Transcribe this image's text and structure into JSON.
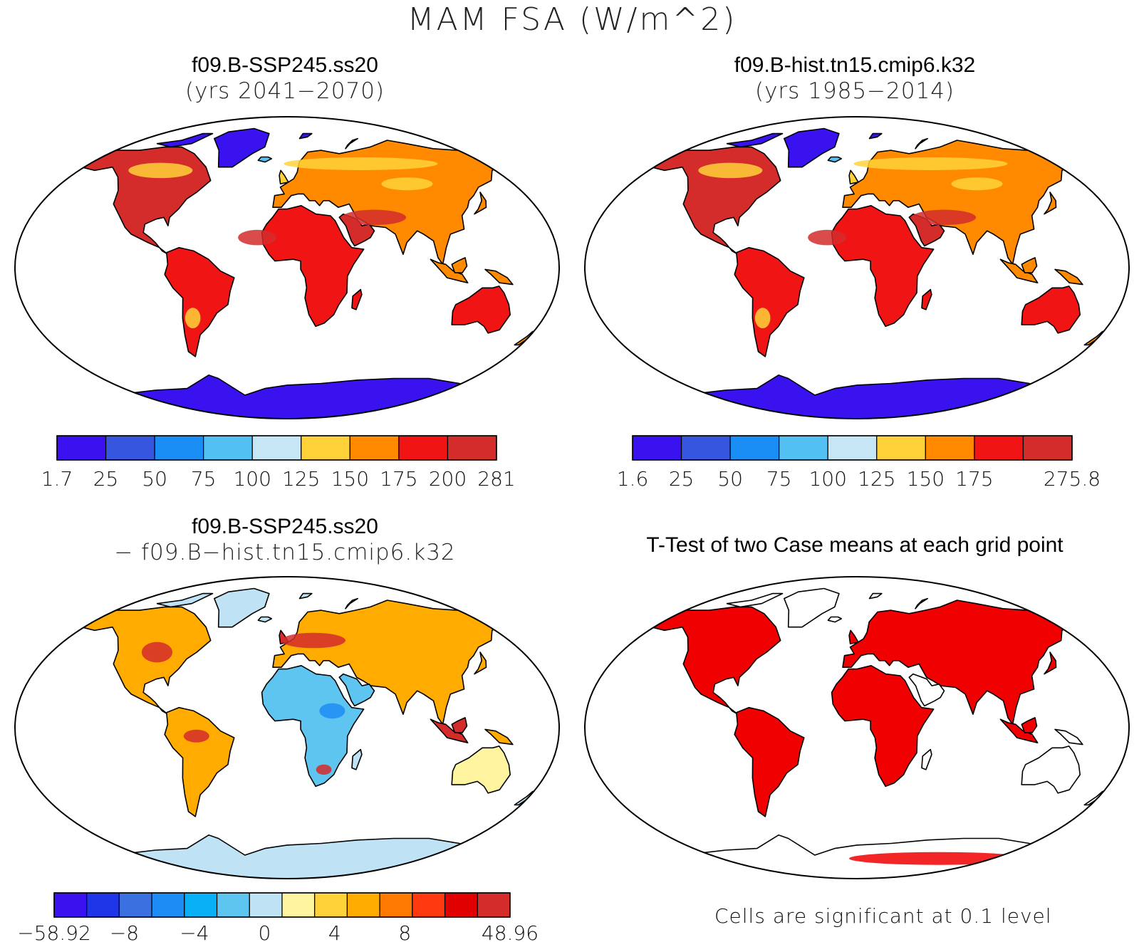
{
  "figure": {
    "title": "MAM FSA (W/m^2)"
  },
  "chart_data": [
    {
      "type": "heatmap",
      "panel": "top-left",
      "title": "f09.B-SSP245.ss20",
      "subtitle": "(yrs 2041−2070)",
      "colorbar": {
        "tick_labels": [
          "1.7",
          "25",
          "50",
          "75",
          "100",
          "125",
          "150",
          "175",
          "200",
          "281"
        ],
        "levels": [
          1.7,
          25,
          50,
          75,
          100,
          125,
          150,
          175,
          200,
          281
        ],
        "colors": [
          "#3a12f0",
          "#3756e0",
          "#1a8ef5",
          "#52c0f2",
          "#c6e6f5",
          "#ffd23a",
          "#ff8a00",
          "#f01414",
          "#d42b2b"
        ]
      }
    },
    {
      "type": "heatmap",
      "panel": "top-right",
      "title": "f09.B-hist.tn15.cmip6.k32",
      "subtitle": "(yrs 1985−2014)",
      "colorbar": {
        "tick_labels": [
          "1.6",
          "25",
          "50",
          "75",
          "100",
          "125",
          "150",
          "175",
          "",
          "275.8"
        ],
        "levels": [
          1.6,
          25,
          50,
          75,
          100,
          125,
          150,
          175,
          200,
          275.8
        ],
        "colors": [
          "#3a12f0",
          "#3756e0",
          "#1a8ef5",
          "#52c0f2",
          "#c6e6f5",
          "#ffd23a",
          "#ff8a00",
          "#f01414",
          "#d42b2b"
        ]
      }
    },
    {
      "type": "heatmap",
      "panel": "bottom-left",
      "title": "f09.B-SSP245.ss20",
      "subtitle": "− f09.B−hist.tn15.cmip6.k32",
      "colorbar": {
        "tick_labels": [
          "−58.92",
          "",
          "−8",
          "",
          "−4",
          "",
          "0",
          "",
          "4",
          "",
          "8",
          "",
          "",
          "48.96"
        ],
        "colors": [
          "#3a12f0",
          "#1f35e8",
          "#3a70e0",
          "#1e8cf5",
          "#0ab0f5",
          "#5ec4f0",
          "#bfe3f5",
          "#fff5a0",
          "#ffd23a",
          "#ffab00",
          "#ff7a00",
          "#ff3a10",
          "#e00000",
          "#d42b2b"
        ]
      }
    },
    {
      "type": "heatmap",
      "panel": "bottom-right",
      "title": "T-Test of two Case means at each grid point",
      "note": "Cells are significant at 0.1 level",
      "colors": {
        "significant": "#f00000",
        "land": "#ffffff"
      }
    }
  ]
}
